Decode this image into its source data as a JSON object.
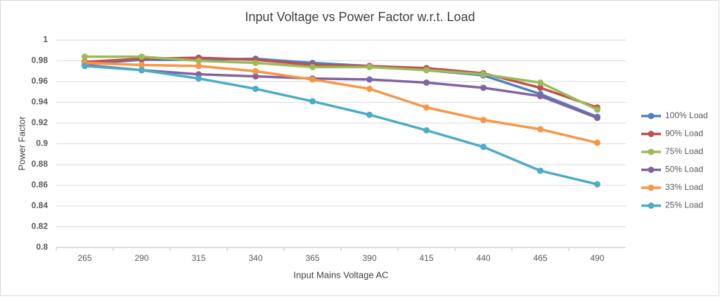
{
  "chart_data": {
    "type": "line",
    "title": "Input Voltage vs Power Factor w.r.t. Load",
    "x_label": "Input Mains Voltage AC",
    "y_label": "Power Factor",
    "categories": [
      "265",
      "290",
      "315",
      "340",
      "365",
      "390",
      "415",
      "440",
      "465",
      "490"
    ],
    "series": [
      {
        "name": "100% Load",
        "color": "#4f81bd",
        "values": [
          0.977,
          0.981,
          0.981,
          0.982,
          0.978,
          0.975,
          0.971,
          0.966,
          0.948,
          0.926
        ]
      },
      {
        "name": "90% Load",
        "color": "#c0504d",
        "values": [
          0.979,
          0.982,
          0.983,
          0.981,
          0.976,
          0.975,
          0.973,
          0.968,
          0.954,
          0.935
        ]
      },
      {
        "name": "75% Load",
        "color": "#9bbb59",
        "values": [
          0.984,
          0.984,
          0.98,
          0.978,
          0.974,
          0.974,
          0.971,
          0.967,
          0.959,
          0.933
        ]
      },
      {
        "name": "50% Load",
        "color": "#8064a2",
        "values": [
          0.976,
          0.971,
          0.967,
          0.965,
          0.963,
          0.962,
          0.959,
          0.954,
          0.946,
          0.925
        ]
      },
      {
        "name": "33% Load",
        "color": "#f79646",
        "values": [
          0.978,
          0.976,
          0.975,
          0.97,
          0.962,
          0.953,
          0.935,
          0.923,
          0.914,
          0.901
        ]
      },
      {
        "name": "25% Load",
        "color": "#4bacc6",
        "values": [
          0.975,
          0.971,
          0.963,
          0.953,
          0.941,
          0.928,
          0.913,
          0.897,
          0.874,
          0.861
        ]
      }
    ],
    "ylim": [
      0.8,
      1
    ],
    "yticks": [
      0.8,
      0.82,
      0.84,
      0.86,
      0.88,
      0.9,
      0.92,
      0.94,
      0.96,
      0.98,
      1
    ],
    "grid": true,
    "legend": "right"
  }
}
